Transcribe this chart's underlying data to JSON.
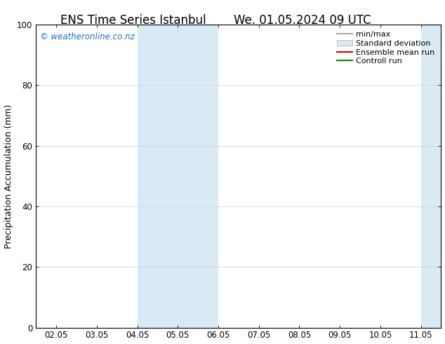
{
  "title_left": "ENS Time Series Istanbul",
  "title_right": "We. 01.05.2024 09 UTC",
  "ylabel": "Precipitation Accumulation (mm)",
  "ylim": [
    0,
    100
  ],
  "yticks": [
    0,
    20,
    40,
    60,
    80,
    100
  ],
  "background_color": "#ffffff",
  "plot_background": "#ffffff",
  "watermark": "© weatheronline.co.nz",
  "watermark_color": "#1a6ec7",
  "x_tick_labels": [
    "02.05",
    "03.05",
    "04.05",
    "05.05",
    "06.05",
    "07.05",
    "08.05",
    "09.05",
    "10.05",
    "11.05"
  ],
  "x_tick_positions": [
    0,
    1,
    2,
    3,
    4,
    5,
    6,
    7,
    8,
    9
  ],
  "xlim": [
    -0.5,
    9.5
  ],
  "shaded_regions": [
    {
      "x_start": 2.0,
      "x_end": 2.5,
      "color": "#daeaf5"
    },
    {
      "x_start": 2.5,
      "x_end": 4.0,
      "color": "#daeaf5"
    },
    {
      "x_start": 9.0,
      "x_end": 9.5,
      "color": "#daeaf5"
    }
  ],
  "legend_entries": [
    {
      "label": "min/max",
      "color": "#aaaaaa",
      "lw": 1.5,
      "type": "line"
    },
    {
      "label": "Standard deviation",
      "color": "#daeaf5",
      "lw": 8,
      "type": "patch",
      "edge": "#aaaaaa"
    },
    {
      "label": "Ensemble mean run",
      "color": "#dd0000",
      "lw": 1.5,
      "type": "line"
    },
    {
      "label": "Controll run",
      "color": "#008800",
      "lw": 1.5,
      "type": "line"
    }
  ],
  "grid_color": "#cccccc",
  "border_color": "#000000",
  "title_fontsize": 12,
  "axis_fontsize": 9,
  "tick_fontsize": 8.5,
  "legend_fontsize": 8
}
